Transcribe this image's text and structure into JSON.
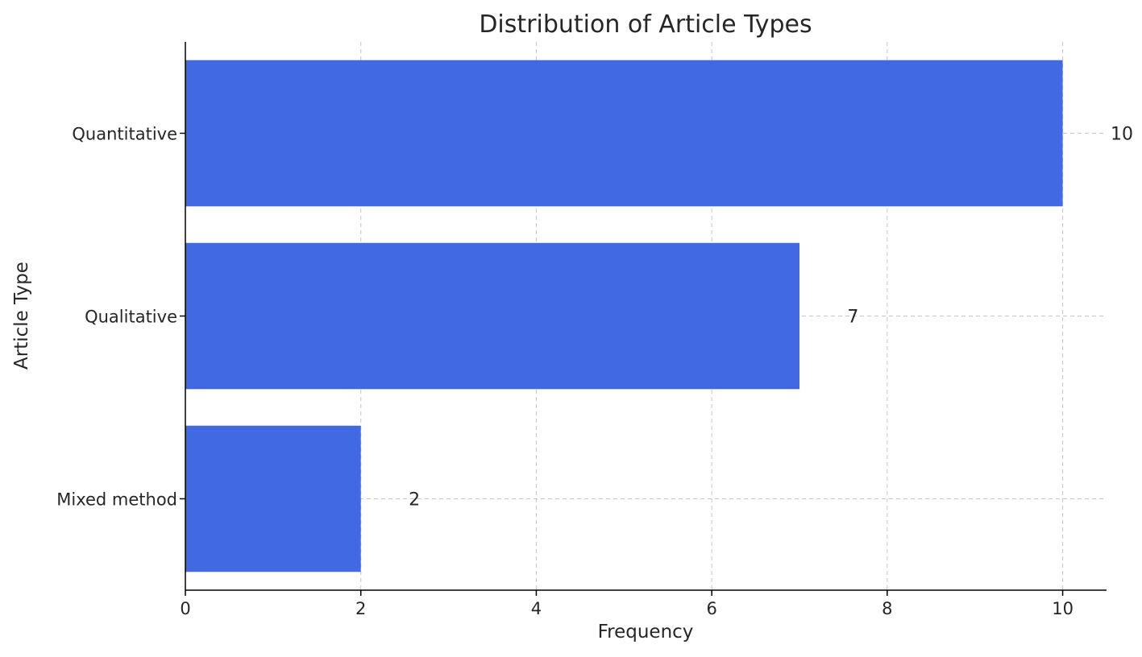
{
  "chart_data": {
    "type": "bar",
    "orientation": "horizontal",
    "title": "Distribution of Article Types",
    "xlabel": "Frequency",
    "ylabel": "Article Type",
    "categories": [
      "Quantitative",
      "Qualitative",
      "Mixed method"
    ],
    "values": [
      10,
      7,
      2
    ],
    "data_labels": [
      "10",
      "7",
      "2"
    ],
    "xlim": [
      0,
      10.5
    ],
    "xticks": [
      0,
      2,
      4,
      6,
      8,
      10
    ],
    "xtick_labels": [
      "0",
      "2",
      "4",
      "6",
      "8",
      "10"
    ],
    "grid": true,
    "bar_color": "#4169e1"
  }
}
